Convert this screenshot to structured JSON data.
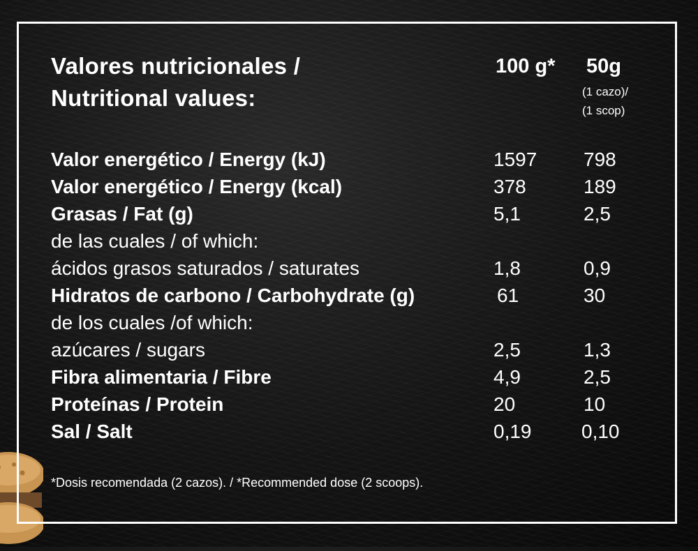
{
  "title": [
    "Valores nutricionales /",
    "Nutritional values:"
  ],
  "headers": {
    "col1": "100 g*",
    "col2": "50g",
    "col2_note": [
      "(1 cazo)/",
      "(1 scop)"
    ]
  },
  "rows": [
    {
      "label": "Valor energético / Energy (kJ)",
      "bold": true,
      "v1": "1597",
      "v2": "798"
    },
    {
      "label": "Valor energético / Energy (kcal)",
      "bold": true,
      "v1": "378",
      "v2": "189"
    },
    {
      "label": "Grasas / Fat (g)",
      "bold": true,
      "v1": "5,1",
      "v2": "2,5"
    },
    {
      "label": "de las cuales / of which:",
      "bold": false,
      "v1": "",
      "v2": ""
    },
    {
      "label": "ácidos grasos saturados / saturates",
      "bold": false,
      "v1": "1,8",
      "v2": "0,9"
    },
    {
      "label": "Hidratos de carbono / Carbohydrate (g)",
      "bold": true,
      "v1": "61",
      "v2": "30"
    },
    {
      "label": "de los cuales /of which:",
      "bold": false,
      "v1": "",
      "v2": ""
    },
    {
      "label": "azúcares /  sugars",
      "bold": false,
      "v1": "2,5",
      "v2": "1,3"
    },
    {
      "label": "Fibra alimentaria / Fibre",
      "bold": true,
      "v1": "4,9",
      "v2": "2,5"
    },
    {
      "label": "Proteínas / Protein",
      "bold": true,
      "v1": "20",
      "v2": "10"
    },
    {
      "label": "Sal / Salt",
      "bold": true,
      "v1": "0,19",
      "v2": "0,10"
    }
  ],
  "footnote": "*Dosis recomendada (2 cazos). /  *Recommended dose (2 scoops)."
}
